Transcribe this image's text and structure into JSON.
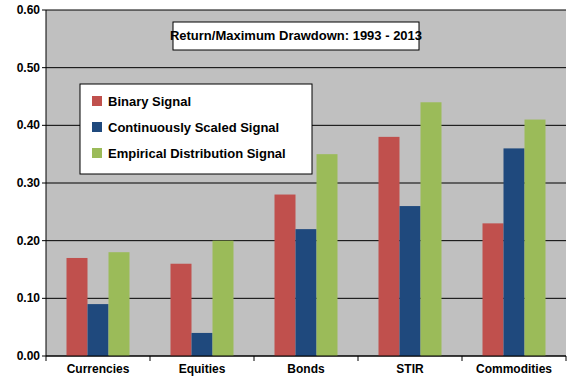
{
  "chart_data": {
    "type": "bar",
    "title": "Return/Maximum Drawdown: 1993 - 2013",
    "categories": [
      "Currencies",
      "Equities",
      "Bonds",
      "STIR",
      "Commodities"
    ],
    "series": [
      {
        "name": "Binary Signal",
        "color": "#c0504d",
        "values": [
          0.17,
          0.16,
          0.28,
          0.38,
          0.23
        ]
      },
      {
        "name": "Continuously Scaled Signal",
        "color": "#1f497d",
        "values": [
          0.09,
          0.04,
          0.22,
          0.26,
          0.36
        ]
      },
      {
        "name": "Empirical Distribution Signal",
        "color": "#9bbb59",
        "values": [
          0.18,
          0.2,
          0.35,
          0.44,
          0.41
        ]
      }
    ],
    "ylim": [
      0,
      0.6
    ],
    "yticks": [
      {
        "value": 0,
        "label": "0.00"
      },
      {
        "value": 0.1,
        "label": "0.10"
      },
      {
        "value": 0.2,
        "label": "0.20"
      },
      {
        "value": 0.3,
        "label": "0.30"
      },
      {
        "value": 0.4,
        "label": "0.40"
      },
      {
        "value": 0.5,
        "label": "0.50"
      },
      {
        "value": 0.6,
        "label": "0.60"
      }
    ],
    "grid": true,
    "legend": "upper-left"
  }
}
